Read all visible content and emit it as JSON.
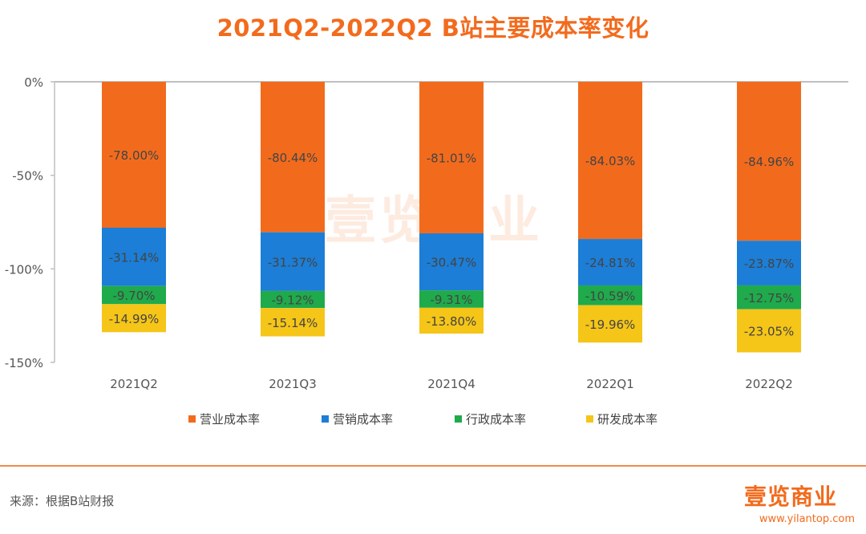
{
  "title": "2021Q2-2022Q2 B站主要成本率变化",
  "source": "来源：根据B站财报",
  "logo": "壹览商业",
  "website": "www.yilantop.com",
  "watermark": "壹览商业",
  "colors": {
    "title": "#f26b1d",
    "operating": "#f26b1d",
    "marketing": "#1c7ed6",
    "admin": "#1faa4b",
    "rnd": "#f5c518",
    "axis": "#bfbfbf"
  },
  "chart_data": {
    "type": "bar",
    "stacked": true,
    "categories": [
      "2021Q2",
      "2021Q3",
      "2021Q4",
      "2022Q1",
      "2022Q2"
    ],
    "ylim": [
      -150,
      0
    ],
    "yticks": [
      0,
      -50,
      -100,
      -150
    ],
    "ytick_labels": [
      "0%",
      "-50%",
      "-100%",
      "-150%"
    ],
    "legend_position": "bottom",
    "grid": false,
    "series": [
      {
        "name": "营业成本率",
        "color": "#f26b1d",
        "values": [
          -78.0,
          -80.44,
          -81.01,
          -84.03,
          -84.96
        ],
        "labels": [
          "-78.00%",
          "-80.44%",
          "-81.01%",
          "-84.03%",
          "-84.96%"
        ]
      },
      {
        "name": "营销成本率",
        "color": "#1c7ed6",
        "values": [
          -31.14,
          -31.37,
          -30.47,
          -24.81,
          -23.87
        ],
        "labels": [
          "-31.14%",
          "-31.37%",
          "-30.47%",
          "-24.81%",
          "-23.87%"
        ]
      },
      {
        "name": "行政成本率",
        "color": "#1faa4b",
        "values": [
          -9.7,
          -9.12,
          -9.31,
          -10.59,
          -12.75
        ],
        "labels": [
          "-9.70%",
          "-9.12%",
          "-9.31%",
          "-10.59%",
          "-12.75%"
        ]
      },
      {
        "name": "研发成本率",
        "color": "#f5c518",
        "values": [
          -14.99,
          -15.14,
          -13.8,
          -19.96,
          -23.05
        ],
        "labels": [
          "-14.99%",
          "-15.14%",
          "-13.80%",
          "-19.96%",
          "-23.05%"
        ]
      }
    ]
  }
}
